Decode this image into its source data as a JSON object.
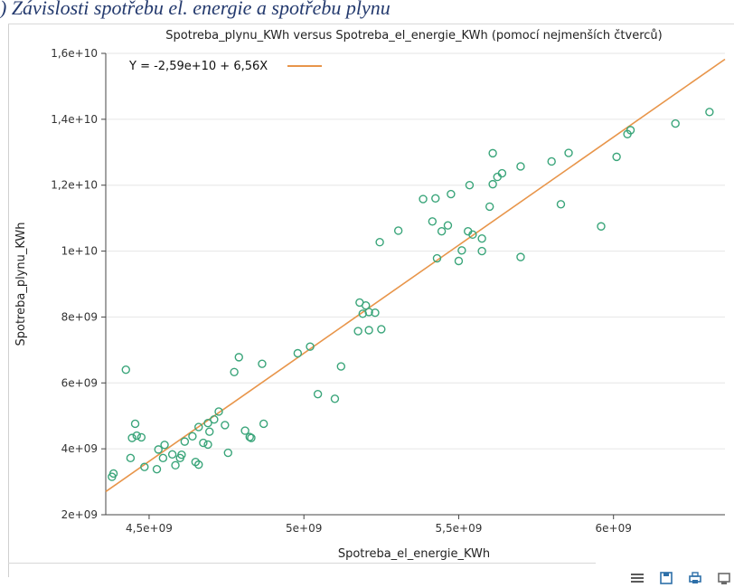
{
  "caption": ") Závislosti spotřebu el. energie a spotřebu plynu",
  "toolbar": {
    "icons": [
      "menu-icon",
      "save-icon",
      "print-icon",
      "export-icon"
    ]
  },
  "colors": {
    "points": "#3aa57a",
    "line": "#e8954a",
    "axis": "#444444",
    "grid": "#e6e6e6"
  },
  "chart_data": {
    "type": "scatter",
    "title": "Spotreba_plynu_KWh versus Spotreba_el_energie_KWh (pomocí nejmenších čtverců)",
    "xlabel": "Spotreba_el_energie_KWh",
    "ylabel": "Spotreba_plynu_KWh",
    "xlim": [
      4360000000,
      6360000000
    ],
    "ylim": [
      2000000000,
      16000000000
    ],
    "xticks": [
      4500000000,
      5000000000,
      5500000000,
      6000000000
    ],
    "xtick_labels": [
      "4,5e+09",
      "5e+09",
      "5,5e+09",
      "6e+09"
    ],
    "yticks": [
      2000000000,
      4000000000,
      6000000000,
      8000000000,
      10000000000,
      12000000000,
      14000000000,
      16000000000
    ],
    "ytick_labels": [
      "2e+09",
      "4e+09",
      "6e+09",
      "8e+09",
      "1e+10",
      "1,2e+10",
      "1,4e+10",
      "1,6e+10"
    ],
    "grid": "horizontal",
    "legend_position": "top-left",
    "fit": {
      "label": "Y = -2,59e+10 + 6,56X",
      "intercept": -25900000000,
      "slope": 6.56
    },
    "points": [
      [
        4380000000.0,
        3150000000.0
      ],
      [
        4385000000.0,
        3250000000.0
      ],
      [
        4425000000.0,
        6400000000.0
      ],
      [
        4440000000.0,
        3720000000.0
      ],
      [
        4445000000.0,
        4330000000.0
      ],
      [
        4455000000.0,
        4760000000.0
      ],
      [
        4460000000.0,
        4400000000.0
      ],
      [
        4475000000.0,
        4350000000.0
      ],
      [
        4485000000.0,
        3450000000.0
      ],
      [
        4525000000.0,
        3380000000.0
      ],
      [
        4530000000.0,
        3980000000.0
      ],
      [
        4550000000.0,
        4120000000.0
      ],
      [
        4545000000.0,
        3720000000.0
      ],
      [
        4575000000.0,
        3830000000.0
      ],
      [
        4585000000.0,
        3500000000.0
      ],
      [
        4600000000.0,
        3720000000.0
      ],
      [
        4605000000.0,
        3820000000.0
      ],
      [
        4615000000.0,
        4220000000.0
      ],
      [
        4640000000.0,
        4380000000.0
      ],
      [
        4650000000.0,
        3600000000.0
      ],
      [
        4660000000.0,
        3520000000.0
      ],
      [
        4660000000.0,
        4660000000.0
      ],
      [
        4675000000.0,
        4180000000.0
      ],
      [
        4690000000.0,
        4130000000.0
      ],
      [
        4695000000.0,
        4520000000.0
      ],
      [
        4690000000.0,
        4780000000.0
      ],
      [
        4710000000.0,
        4890000000.0
      ],
      [
        4725000000.0,
        5130000000.0
      ],
      [
        4745000000.0,
        4720000000.0
      ],
      [
        4755000000.0,
        3880000000.0
      ],
      [
        4775000000.0,
        6330000000.0
      ],
      [
        4790000000.0,
        6780000000.0
      ],
      [
        4810000000.0,
        4550000000.0
      ],
      [
        4825000000.0,
        4360000000.0
      ],
      [
        4830000000.0,
        4330000000.0
      ],
      [
        4865000000.0,
        6580000000.0
      ],
      [
        4870000000.0,
        4760000000.0
      ],
      [
        4980000000.0,
        6900000000.0
      ],
      [
        5020000000.0,
        7100000000.0
      ],
      [
        5045000000.0,
        5660000000.0
      ],
      [
        5100000000.0,
        5520000000.0
      ],
      [
        5120000000.0,
        6500000000.0
      ],
      [
        5175000000.0,
        7570000000.0
      ],
      [
        5180000000.0,
        8440000000.0
      ],
      [
        5190000000.0,
        8100000000.0
      ],
      [
        5200000000.0,
        8350000000.0
      ],
      [
        5210000000.0,
        7600000000.0
      ],
      [
        5210000000.0,
        8150000000.0
      ],
      [
        5230000000.0,
        8130000000.0
      ],
      [
        5250000000.0,
        7630000000.0
      ],
      [
        5245000000.0,
        10270000000.0
      ],
      [
        5305000000.0,
        10620000000.0
      ],
      [
        5385000000.0,
        11580000000.0
      ],
      [
        5415000000.0,
        10900000000.0
      ],
      [
        5425000000.0,
        11600000000.0
      ],
      [
        5430000000.0,
        9780000000.0
      ],
      [
        5445000000.0,
        10600000000.0
      ],
      [
        5465000000.0,
        10780000000.0
      ],
      [
        5475000000.0,
        11730000000.0
      ],
      [
        5500000000.0,
        9700000000.0
      ],
      [
        5510000000.0,
        10020000000.0
      ],
      [
        5530000000.0,
        10600000000.0
      ],
      [
        5535000000.0,
        12000000000.0
      ],
      [
        5545000000.0,
        10500000000.0
      ],
      [
        5575000000.0,
        10000000000.0
      ],
      [
        5575000000.0,
        10380000000.0
      ],
      [
        5600000000.0,
        11350000000.0
      ],
      [
        5610000000.0,
        12030000000.0
      ],
      [
        5610000000.0,
        12970000000.0
      ],
      [
        5625000000.0,
        12250000000.0
      ],
      [
        5640000000.0,
        12360000000.0
      ],
      [
        5700000000.0,
        12570000000.0
      ],
      [
        5700000000.0,
        9820000000.0
      ],
      [
        5800000000.0,
        12720000000.0
      ],
      [
        5830000000.0,
        11420000000.0
      ],
      [
        5855000000.0,
        12980000000.0
      ],
      [
        5960000000.0,
        10750000000.0
      ],
      [
        6010000000.0,
        12860000000.0
      ],
      [
        6045000000.0,
        13550000000.0
      ],
      [
        6055000000.0,
        13670000000.0
      ],
      [
        6200000000.0,
        13870000000.0
      ],
      [
        6310000000.0,
        14220000000.0
      ]
    ]
  }
}
